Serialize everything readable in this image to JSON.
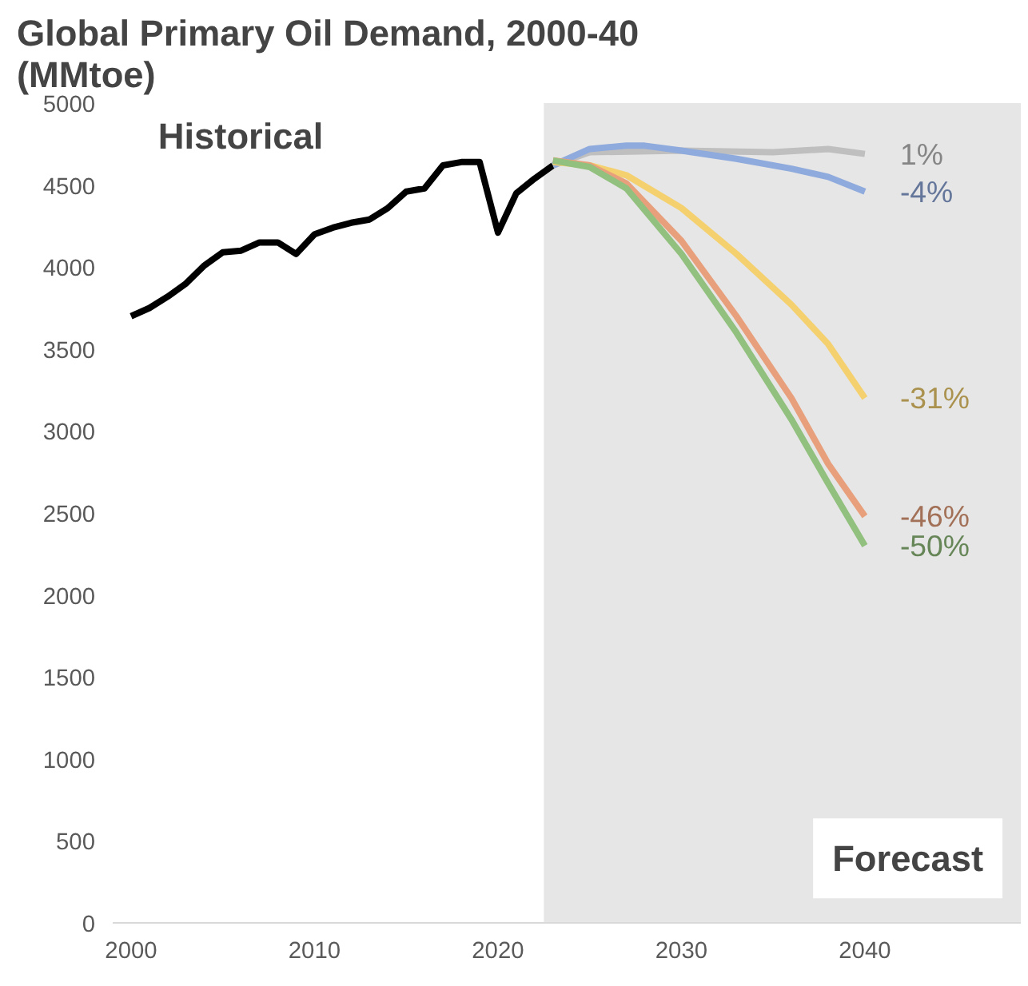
{
  "chart_data": {
    "type": "line",
    "title": "Global Primary Oil Demand, 2000-40\n(MMtoe)",
    "xlim": [
      1999,
      2048.5
    ],
    "ylim": [
      0,
      5000
    ],
    "xticks": [
      2000,
      2010,
      2020,
      2030,
      2040
    ],
    "yticks": [
      0,
      500,
      1000,
      1500,
      2000,
      2500,
      3000,
      3500,
      4000,
      4500,
      5000
    ],
    "grid": false,
    "bands": [
      {
        "axis": "x",
        "from": 2022.5,
        "to": 2048.5,
        "label": "Forecast",
        "color": "#e6e6e6"
      }
    ],
    "annotations": [
      "Historical"
    ],
    "series": [
      {
        "color": "#000000",
        "x": [
          2000,
          2001,
          2002,
          2003,
          2004,
          2005,
          2006,
          2007,
          2008,
          2009,
          2010,
          2011,
          2012,
          2013,
          2014,
          2015,
          2016,
          2017,
          2018,
          2019,
          2020,
          2021,
          2022,
          2023
        ],
        "values": [
          3700,
          3750,
          3820,
          3900,
          4010,
          4090,
          4100,
          4150,
          4150,
          4080,
          4200,
          4240,
          4270,
          4290,
          4360,
          4460,
          4480,
          4620,
          4640,
          4640,
          4210,
          4450,
          4540,
          4620
        ]
      },
      {
        "name": "1%",
        "color": "#bfbfbf",
        "x": [
          2023,
          2025,
          2030,
          2035,
          2038,
          2040
        ],
        "values": [
          4620,
          4700,
          4710,
          4700,
          4720,
          4690
        ]
      },
      {
        "name": "-4%",
        "color": "#8faadc",
        "x": [
          2023,
          2025,
          2027,
          2028,
          2030,
          2033,
          2036,
          2038,
          2040
        ],
        "values": [
          4620,
          4720,
          4740,
          4740,
          4710,
          4660,
          4600,
          4550,
          4460
        ]
      },
      {
        "name": "-31%",
        "color": "#f4d06f",
        "x": [
          2023,
          2025,
          2027,
          2030,
          2033,
          2036,
          2038,
          2040
        ],
        "values": [
          4640,
          4620,
          4560,
          4360,
          4080,
          3770,
          3530,
          3200
        ]
      },
      {
        "name": "-46%",
        "color": "#e8a07c",
        "x": [
          2023,
          2025,
          2027,
          2030,
          2033,
          2036,
          2038,
          2040
        ],
        "values": [
          4650,
          4620,
          4510,
          4160,
          3700,
          3200,
          2800,
          2480
        ]
      },
      {
        "name": "-50%",
        "color": "#92c07e",
        "x": [
          2023,
          2025,
          2027,
          2030,
          2033,
          2036,
          2038,
          2040
        ],
        "values": [
          4650,
          4610,
          4480,
          4080,
          3600,
          3070,
          2680,
          2300
        ]
      }
    ]
  }
}
